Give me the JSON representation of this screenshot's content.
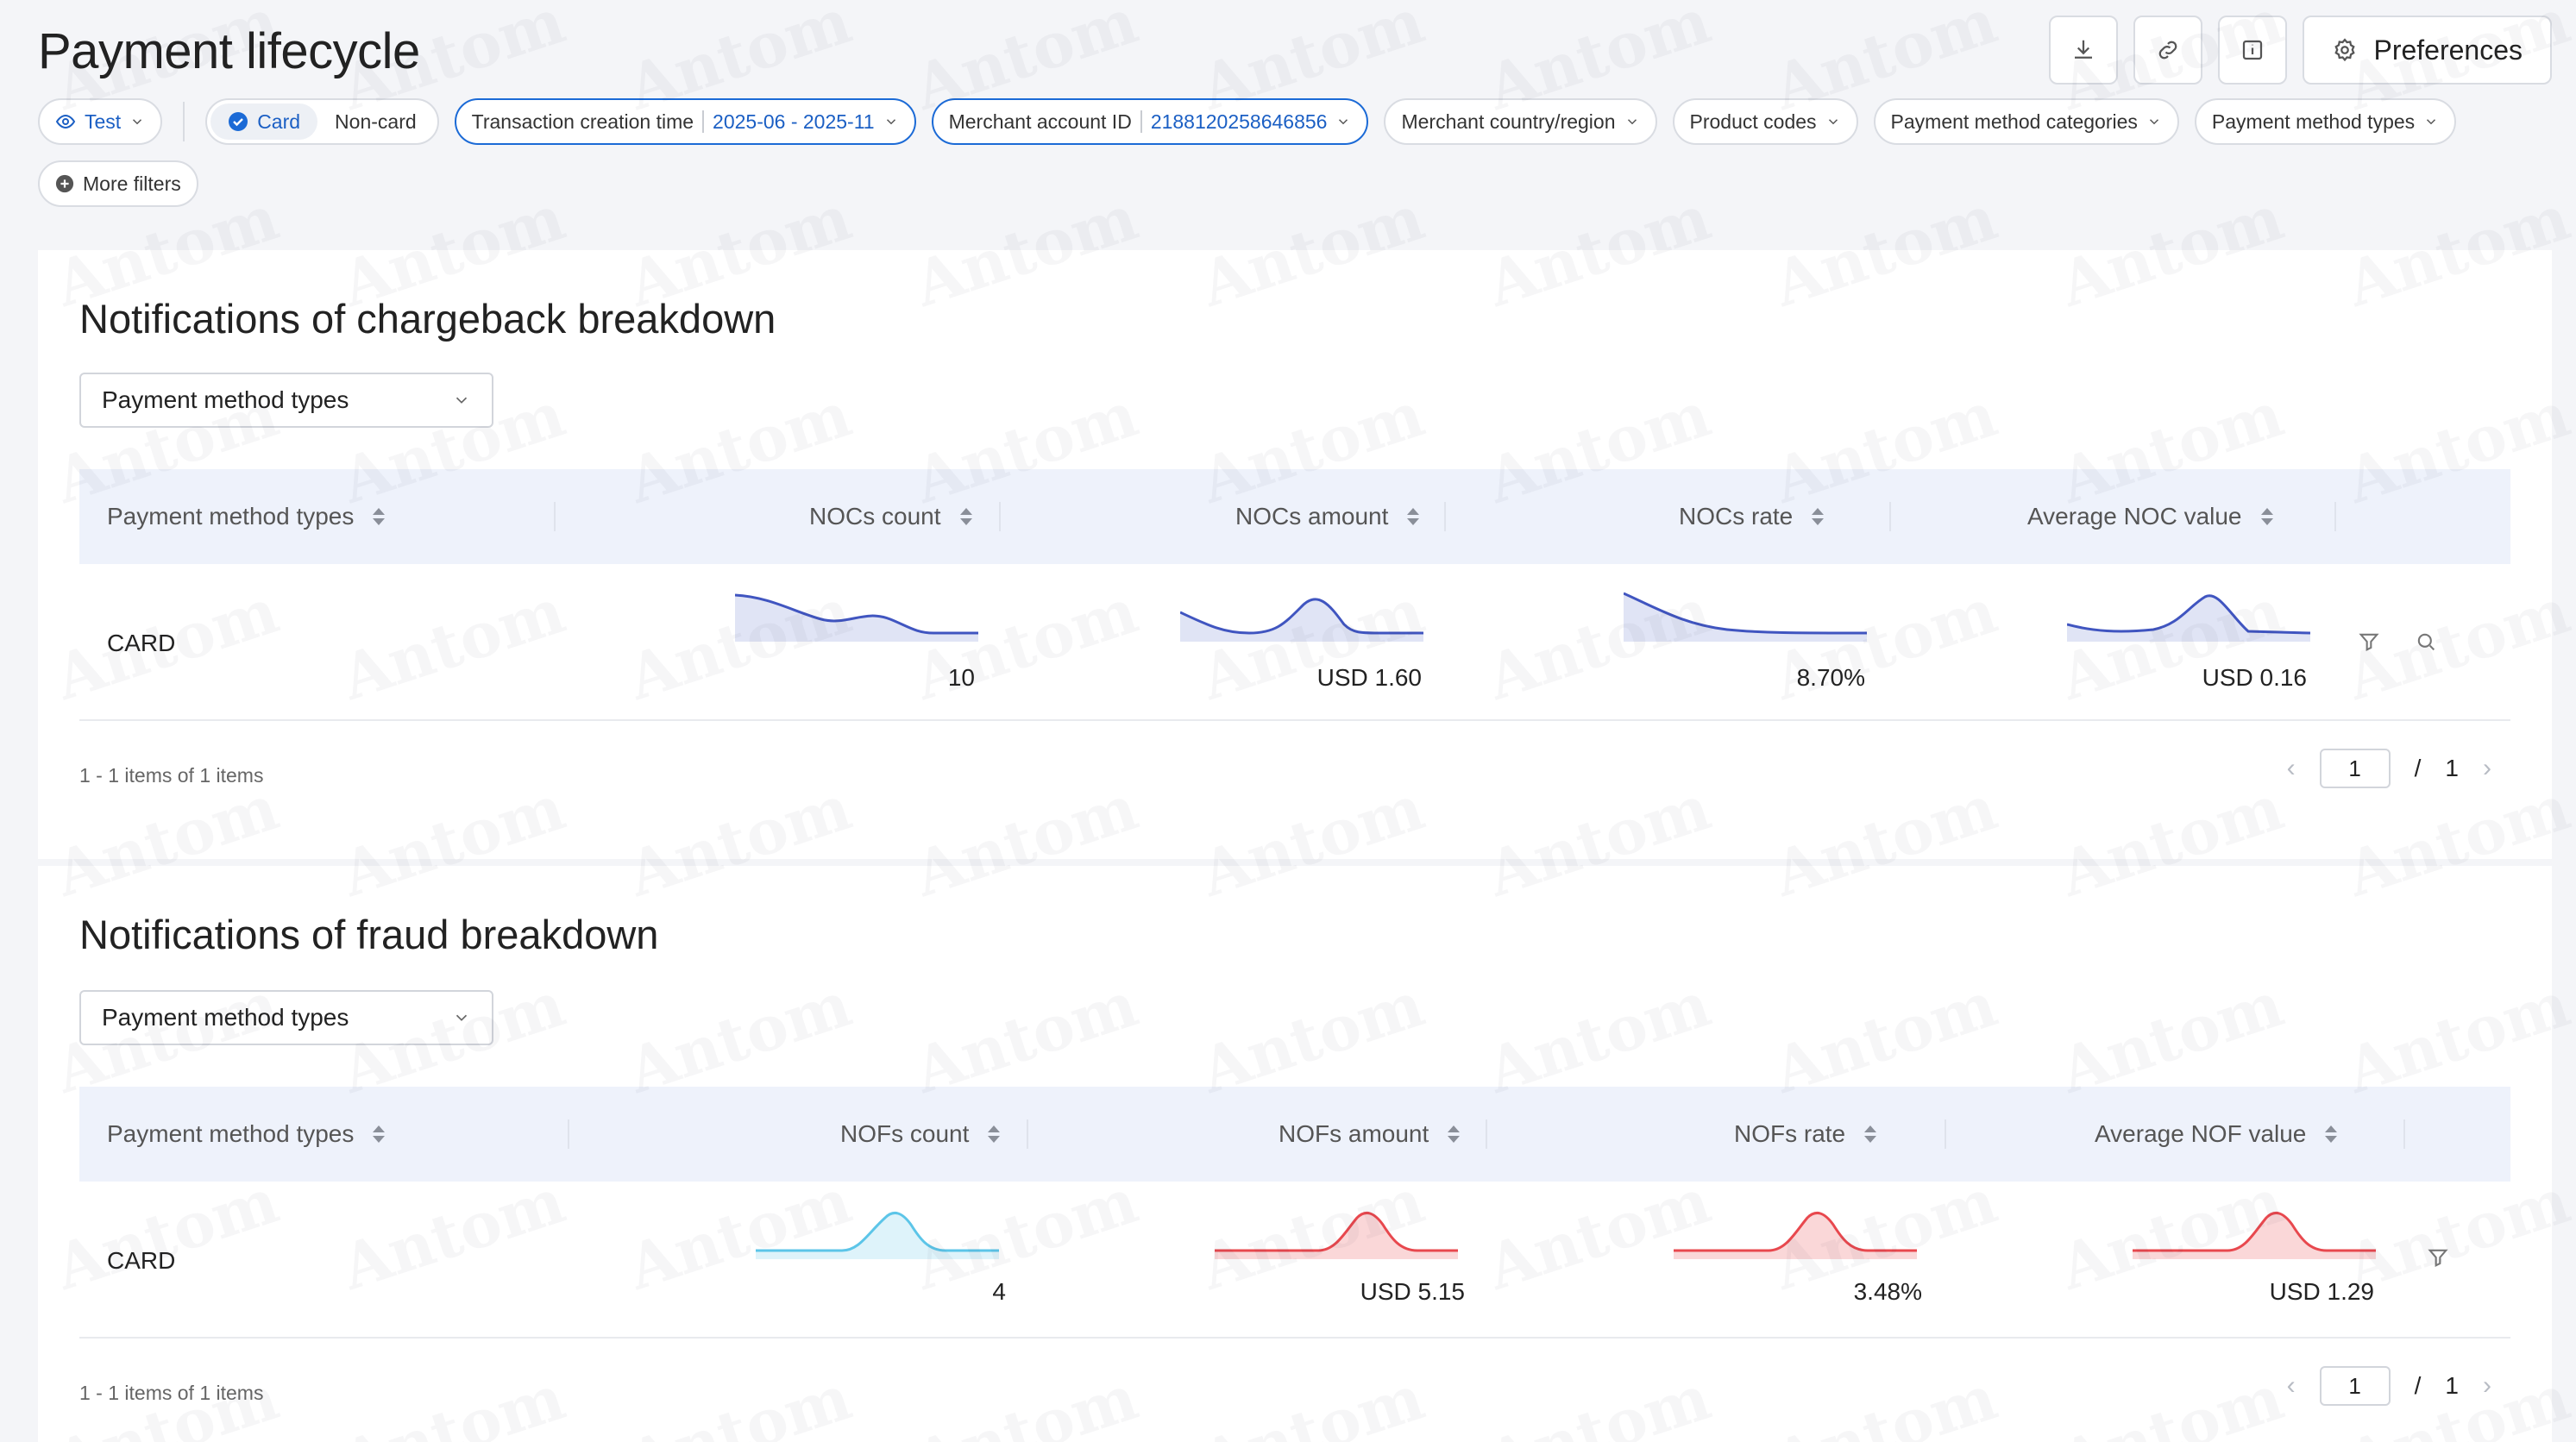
{
  "page": {
    "title": "Payment lifecycle"
  },
  "top_actions": {
    "preferences_label": "Preferences",
    "icons": [
      "download-icon",
      "link-icon",
      "info-icon",
      "gear-icon"
    ]
  },
  "filters": {
    "env": "Test",
    "card_type_options": [
      "Card",
      "Non-card"
    ],
    "card_type_selected": "Card",
    "transaction_time_label": "Transaction creation time",
    "transaction_time_value": "2025-06 - 2025-11",
    "merchant_id_label": "Merchant account ID",
    "merchant_id_value": "2188120258646856",
    "merchant_country": "Merchant country/region",
    "product_codes": "Product codes",
    "payment_method_categories": "Payment method categories",
    "payment_method_types": "Payment method types",
    "more_filters": "More filters"
  },
  "watermark": "Antom",
  "chargeback": {
    "title": "Notifications of chargeback breakdown",
    "select_value": "Payment method types",
    "columns": [
      "Payment method types",
      "NOCs count",
      "NOCs amount",
      "NOCs rate",
      "Average NOC value"
    ],
    "row": {
      "name": "CARD",
      "count": "10",
      "amount": "USD 1.60",
      "rate": "8.70%",
      "avg": "USD 0.16"
    },
    "count_text": "1 - 1 items of 1 items",
    "pager": {
      "page": "1",
      "sep": "/",
      "total": "1"
    }
  },
  "fraud": {
    "title": "Notifications of fraud breakdown",
    "select_value": "Payment method types",
    "columns": [
      "Payment method types",
      "NOFs count",
      "NOFs amount",
      "NOFs rate",
      "Average NOF value"
    ],
    "row": {
      "name": "CARD",
      "count": "4",
      "amount": "USD 5.15",
      "rate": "3.48%",
      "avg": "USD 1.29"
    },
    "count_text": "1 - 1 items of 1 items",
    "pager": {
      "page": "1",
      "sep": "/",
      "total": "1"
    }
  },
  "colors": {
    "accent": "#1b5fc4",
    "spark_blue": "#4055c0",
    "spark_cyan": "#5cc5e8",
    "spark_red": "#e8484e"
  }
}
